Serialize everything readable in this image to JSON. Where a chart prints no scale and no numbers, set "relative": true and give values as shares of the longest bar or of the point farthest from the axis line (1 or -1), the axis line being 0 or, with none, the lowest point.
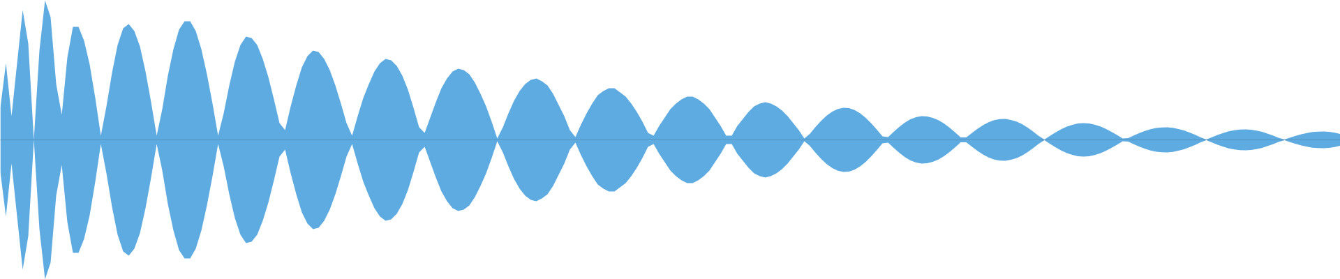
{
  "chart_data": {
    "type": "area",
    "relative": true,
    "categories": [
      null,
      null,
      null,
      null,
      null,
      null,
      null,
      null,
      null,
      null,
      null,
      null,
      null,
      null,
      null,
      null,
      null,
      null,
      null,
      null,
      null,
      null,
      null,
      null,
      null,
      null,
      null,
      null,
      null,
      null,
      null,
      null,
      null,
      null,
      null,
      null,
      null,
      null,
      null,
      null,
      null,
      null,
      null,
      null,
      null,
      null,
      null,
      null,
      null,
      null,
      null,
      null,
      null,
      null,
      null,
      null,
      null,
      null,
      null,
      null,
      null,
      null,
      null,
      null,
      null,
      null,
      null,
      null,
      null,
      null,
      null,
      null,
      null,
      null,
      null,
      null,
      null,
      null,
      null,
      null,
      null,
      null,
      null,
      null,
      null,
      null,
      null,
      null,
      null,
      null,
      null,
      null,
      null,
      null,
      null,
      null,
      null,
      null,
      null,
      null,
      null,
      null,
      null,
      null,
      null,
      null,
      null,
      null,
      null,
      null,
      null,
      null,
      null,
      null,
      null,
      null,
      null,
      null,
      null,
      null,
      null,
      null,
      null,
      null,
      null,
      null,
      null,
      null,
      null,
      null,
      null,
      null,
      null,
      null,
      null,
      null,
      null,
      null,
      null,
      null,
      null,
      null,
      null,
      null,
      null,
      null,
      null,
      null,
      null,
      null,
      null,
      null,
      null,
      null,
      null,
      null,
      null,
      null,
      null,
      null,
      null,
      null,
      null,
      null,
      null,
      null,
      null,
      null,
      null,
      null,
      null,
      null,
      null,
      null,
      null,
      null,
      null,
      null,
      null,
      null,
      null,
      null,
      null,
      null,
      null,
      null,
      null,
      null,
      null,
      null,
      null,
      null,
      null,
      null,
      null,
      null,
      null,
      null,
      null,
      null,
      null,
      null,
      null,
      null,
      null,
      null,
      null,
      null,
      null,
      null,
      null,
      null,
      null,
      null,
      null,
      null,
      null,
      null,
      null,
      null,
      null,
      null,
      null,
      null,
      null,
      null,
      null,
      null,
      null,
      null,
      null,
      null,
      null,
      null,
      null,
      null,
      null,
      null,
      null,
      null,
      null
    ],
    "series": [
      {
        "color": "#5dabe1",
        "values": [
          0.23,
          0.55,
          0.17,
          0.55,
          0.93,
          0.69,
          0,
          0.64,
          1,
          0.88,
          0.4,
          0.18,
          0.59,
          0.81,
          0.81,
          0.71,
          0.54,
          0.3,
          0.03,
          0.24,
          0.48,
          0.68,
          0.8,
          0.83,
          0.78,
          0.67,
          0.49,
          0.27,
          0.03,
          0.22,
          0.46,
          0.65,
          0.79,
          0.85,
          0.85,
          0.78,
          0.65,
          0.47,
          0.26,
          0.03,
          0.19,
          0.39,
          0.56,
          0.68,
          0.74,
          0.73,
          0.68,
          0.58,
          0.45,
          0.29,
          0.12,
          0.07,
          0.24,
          0.39,
          0.52,
          0.6,
          0.64,
          0.63,
          0.58,
          0.5,
          0.39,
          0.26,
          0.12,
          0.03,
          0.17,
          0.3,
          0.4,
          0.49,
          0.55,
          0.58,
          0.57,
          0.53,
          0.46,
          0.36,
          0.23,
          0.09,
          0.05,
          0.16,
          0.27,
          0.37,
          0.44,
          0.49,
          0.51,
          0.5,
          0.47,
          0.41,
          0.33,
          0.24,
          0.13,
          0.01,
          0.09,
          0.19,
          0.28,
          0.35,
          0.4,
          0.43,
          0.44,
          0.42,
          0.39,
          0.33,
          0.25,
          0.17,
          0.07,
          0.02,
          0.11,
          0.19,
          0.26,
          0.32,
          0.35,
          0.37,
          0.37,
          0.34,
          0.31,
          0.26,
          0.2,
          0.13,
          0.05,
          0.03,
          0.1,
          0.16,
          0.22,
          0.26,
          0.29,
          0.31,
          0.31,
          0.29,
          0.26,
          0.22,
          0.16,
          0.1,
          0.03,
          0.03,
          0.1,
          0.15,
          0.2,
          0.24,
          0.26,
          0.27,
          0.26,
          0.24,
          0.21,
          0.17,
          0.12,
          0.07,
          0.01,
          0.044,
          0.092,
          0.136,
          0.174,
          0.202,
          0.221,
          0.23,
          0.227,
          0.214,
          0.19,
          0.158,
          0.118,
          0.073,
          0.025,
          0.02,
          0.058,
          0.093,
          0.124,
          0.147,
          0.163,
          0.17,
          0.168,
          0.158,
          0.141,
          0.117,
          0.088,
          0.054,
          0.018,
          0.017,
          0.049,
          0.079,
          0.105,
          0.126,
          0.141,
          0.149,
          0.15,
          0.143,
          0.131,
          0.112,
          0.087,
          0.059,
          0.028,
          0.003,
          0.029,
          0.054,
          0.076,
          0.095,
          0.108,
          0.117,
          0.12,
          0.117,
          0.109,
          0.096,
          0.079,
          0.058,
          0.035,
          0.01,
          0.012,
          0.031,
          0.049,
          0.064,
          0.076,
          0.085,
          0.089,
          0.09,
          0.086,
          0.078,
          0.067,
          0.052,
          0.036,
          0.017,
          0.002,
          0.019,
          0.035,
          0.049,
          0.061,
          0.069,
          0.074,
          0.075,
          0.072,
          0.066,
          0.057,
          0.044,
          0.03,
          0.014,
          0.002,
          0.016,
          0.029,
          0.04,
          0.049,
          0.056,
          0.059,
          0.06,
          0.057,
          0.051,
          0.042
        ]
      },
      {
        "color": "#5dabe1",
        "values": [
          -0.23,
          -0.55,
          -0.17,
          -0.55,
          -0.93,
          -0.69,
          0,
          -0.64,
          -1,
          -0.88,
          -0.4,
          -0.18,
          -0.59,
          -0.81,
          -0.81,
          -0.71,
          -0.54,
          -0.3,
          -0.03,
          -0.24,
          -0.48,
          -0.68,
          -0.8,
          -0.83,
          -0.78,
          -0.67,
          -0.49,
          -0.27,
          -0.03,
          -0.22,
          -0.46,
          -0.65,
          -0.79,
          -0.85,
          -0.85,
          -0.78,
          -0.65,
          -0.47,
          -0.26,
          -0.03,
          -0.19,
          -0.39,
          -0.56,
          -0.68,
          -0.74,
          -0.73,
          -0.68,
          -0.58,
          -0.45,
          -0.29,
          -0.12,
          -0.07,
          -0.24,
          -0.39,
          -0.52,
          -0.6,
          -0.64,
          -0.63,
          -0.58,
          -0.5,
          -0.39,
          -0.26,
          -0.12,
          -0.03,
          -0.17,
          -0.3,
          -0.4,
          -0.49,
          -0.55,
          -0.58,
          -0.57,
          -0.53,
          -0.46,
          -0.36,
          -0.23,
          -0.09,
          -0.05,
          -0.16,
          -0.27,
          -0.37,
          -0.44,
          -0.49,
          -0.51,
          -0.5,
          -0.47,
          -0.41,
          -0.33,
          -0.24,
          -0.13,
          -0.01,
          -0.09,
          -0.19,
          -0.28,
          -0.35,
          -0.4,
          -0.43,
          -0.44,
          -0.42,
          -0.39,
          -0.33,
          -0.25,
          -0.17,
          -0.07,
          -0.02,
          -0.11,
          -0.19,
          -0.26,
          -0.32,
          -0.35,
          -0.37,
          -0.37,
          -0.34,
          -0.31,
          -0.26,
          -0.2,
          -0.13,
          -0.05,
          -0.03,
          -0.1,
          -0.16,
          -0.22,
          -0.26,
          -0.29,
          -0.31,
          -0.31,
          -0.29,
          -0.26,
          -0.22,
          -0.16,
          -0.1,
          -0.03,
          -0.03,
          -0.1,
          -0.15,
          -0.2,
          -0.24,
          -0.26,
          -0.27,
          -0.26,
          -0.24,
          -0.21,
          -0.17,
          -0.12,
          -0.07,
          -0.01,
          -0.044,
          -0.092,
          -0.136,
          -0.174,
          -0.202,
          -0.221,
          -0.23,
          -0.227,
          -0.214,
          -0.19,
          -0.158,
          -0.118,
          -0.073,
          -0.025,
          -0.02,
          -0.058,
          -0.093,
          -0.124,
          -0.147,
          -0.163,
          -0.17,
          -0.168,
          -0.158,
          -0.141,
          -0.117,
          -0.088,
          -0.054,
          -0.018,
          -0.017,
          -0.049,
          -0.079,
          -0.105,
          -0.126,
          -0.141,
          -0.149,
          -0.15,
          -0.143,
          -0.131,
          -0.112,
          -0.087,
          -0.059,
          -0.028,
          -0.003,
          -0.029,
          -0.054,
          -0.076,
          -0.095,
          -0.108,
          -0.117,
          -0.12,
          -0.117,
          -0.109,
          -0.096,
          -0.079,
          -0.058,
          -0.035,
          -0.01,
          -0.012,
          -0.031,
          -0.049,
          -0.064,
          -0.076,
          -0.085,
          -0.089,
          -0.09,
          -0.086,
          -0.078,
          -0.067,
          -0.052,
          -0.036,
          -0.017,
          -0.002,
          -0.019,
          -0.035,
          -0.049,
          -0.061,
          -0.069,
          -0.074,
          -0.075,
          -0.072,
          -0.066,
          -0.057,
          -0.044,
          -0.03,
          -0.014,
          -0.002,
          -0.016,
          -0.029,
          -0.04,
          -0.049,
          -0.056,
          -0.059,
          -0.06,
          -0.057,
          -0.051,
          -0.042
        ]
      }
    ]
  }
}
